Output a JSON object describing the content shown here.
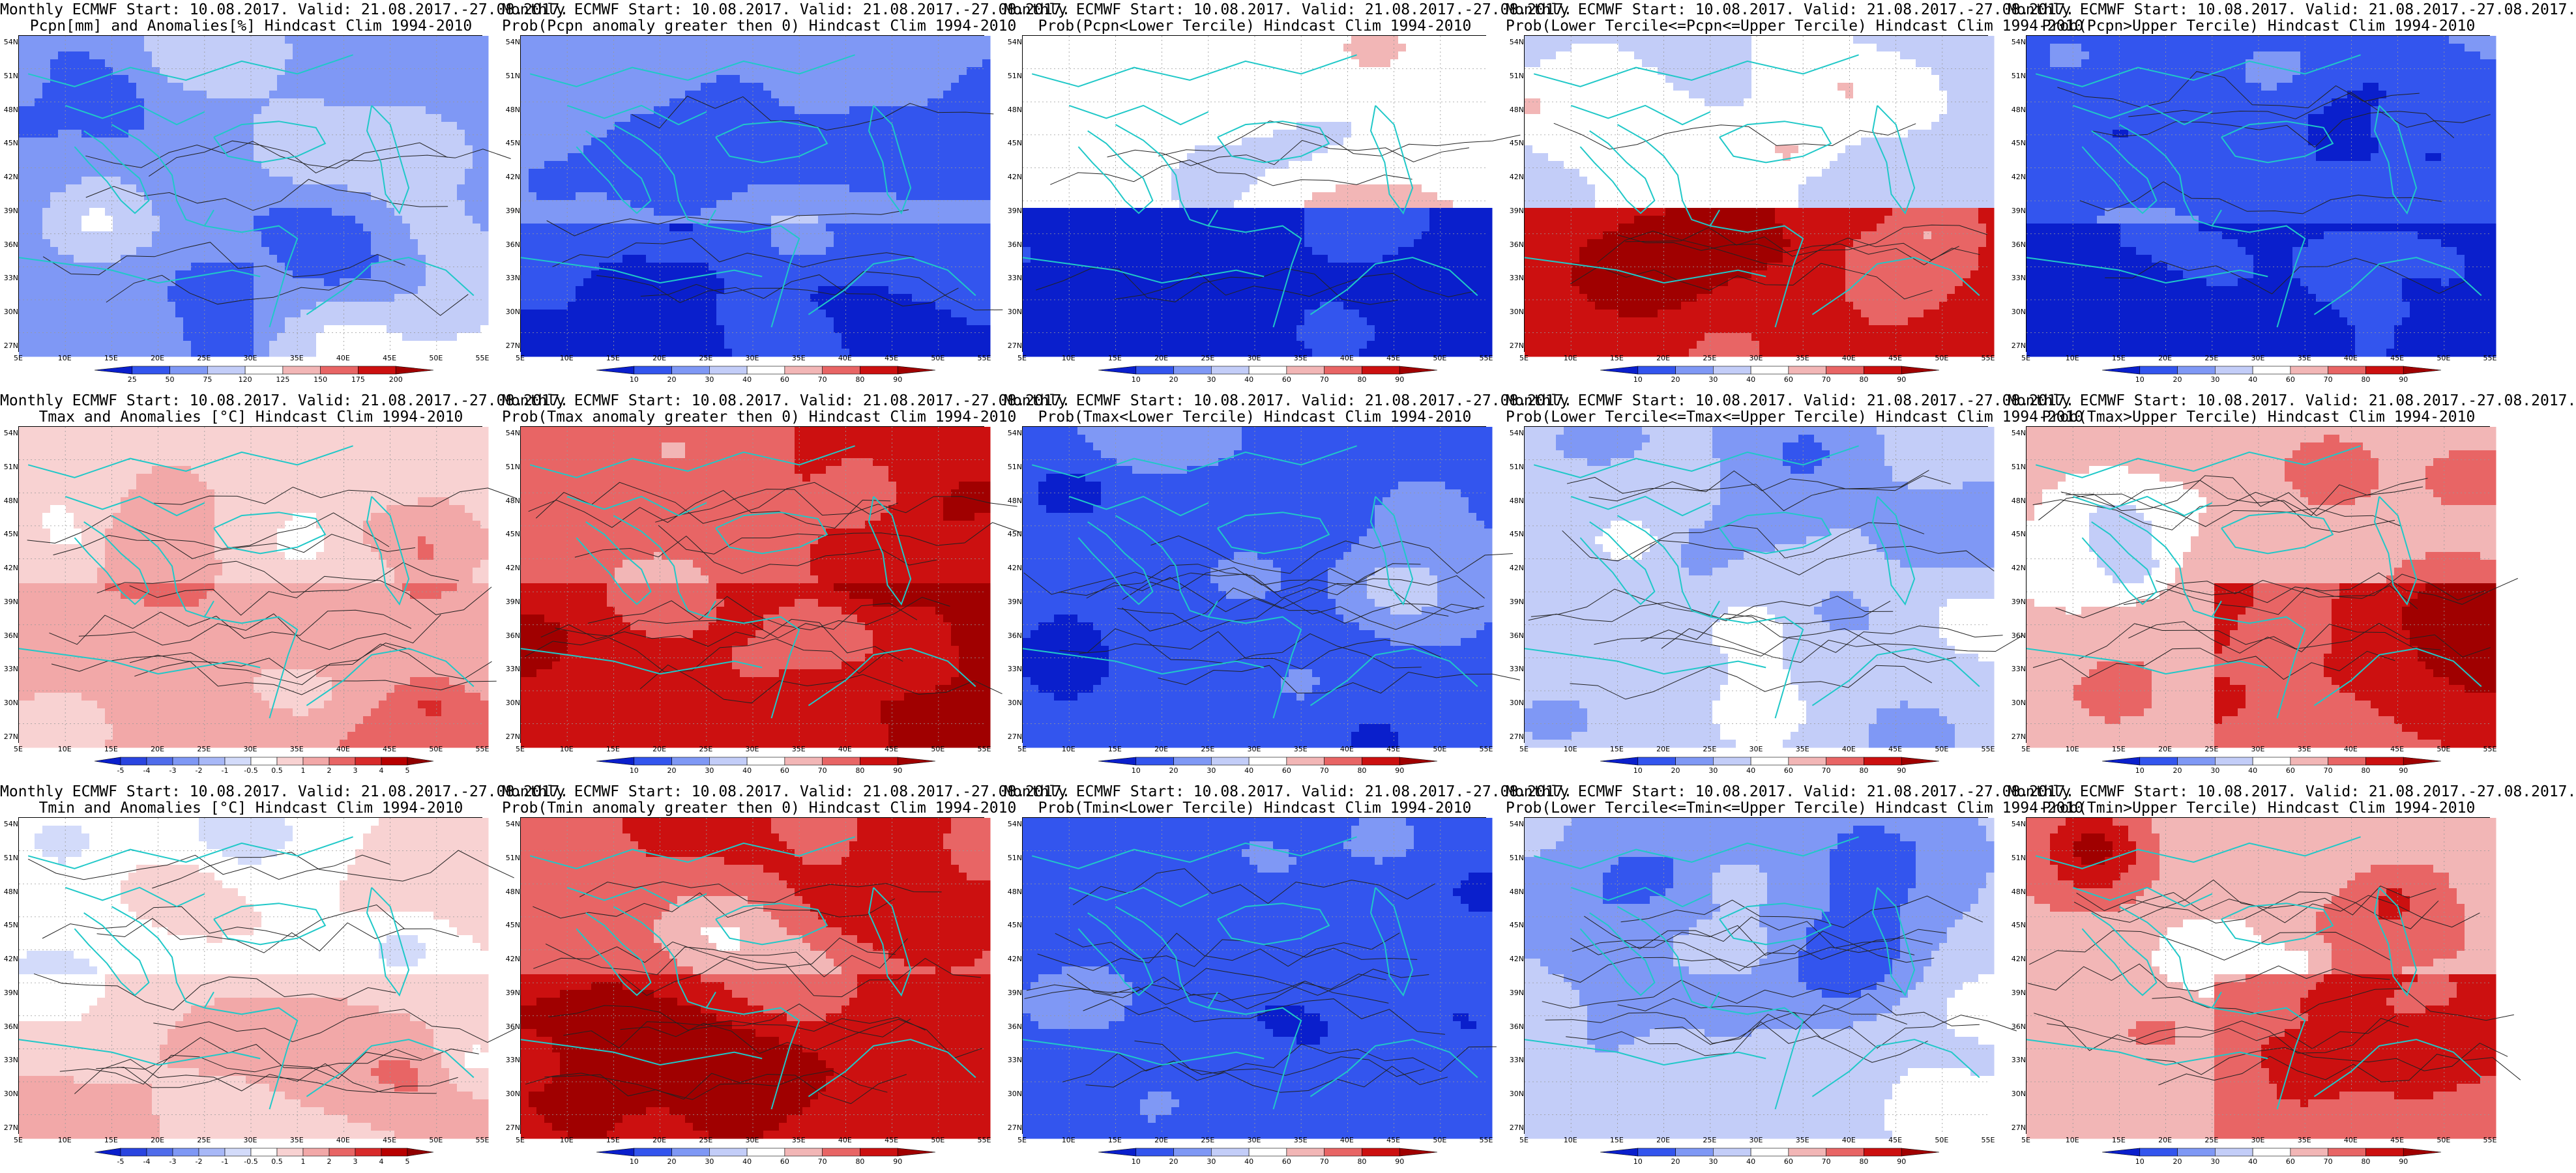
{
  "panels": [
    {
      "row": 0,
      "col": 0,
      "title1": "Monthly ECMWF Start: 10.08.2017. Valid: 21.08.2017.-27.08.2017.",
      "title2": "Pcpn[mm] and Anomalies[%] Hindcast Clim 1994-2010",
      "variable": "pcpn_anomaly",
      "colorbar_ticks": [
        "25",
        "50",
        "75",
        "120",
        "125",
        "150",
        "175",
        "200"
      ],
      "colorbar_colors": [
        "#0a1fcc",
        "#3355ee",
        "#7f98f5",
        "#c3cdf8",
        "#ffffff",
        "#f2b6b6",
        "#e86565",
        "#cc1010",
        "#a00000"
      ]
    },
    {
      "row": 0,
      "col": 1,
      "title1": "Monthly ECMWF Start: 10.08.2017. Valid: 21.08.2017.-27.08.2017.",
      "title2": "Prob(Pcpn anomaly greater then 0) Hindcast Clim 1994-2010",
      "variable": "prob",
      "colorbar_ticks": [
        "10",
        "20",
        "30",
        "40",
        "60",
        "70",
        "80",
        "90"
      ],
      "colorbar_colors": [
        "#0a1fcc",
        "#3355ee",
        "#7f98f5",
        "#c3cdf8",
        "#ffffff",
        "#f2b6b6",
        "#e86565",
        "#cc1010",
        "#a00000"
      ]
    },
    {
      "row": 0,
      "col": 2,
      "title1": "Monthly ECMWF Start: 10.08.2017. Valid: 21.08.2017.-27.08.2017.",
      "title2": "Prob(Pcpn<Lower Tercile) Hindcast Clim 1994-2010",
      "variable": "prob",
      "colorbar_ticks": [
        "10",
        "20",
        "30",
        "40",
        "60",
        "70",
        "80",
        "90"
      ],
      "colorbar_colors": [
        "#0a1fcc",
        "#3355ee",
        "#7f98f5",
        "#c3cdf8",
        "#ffffff",
        "#f2b6b6",
        "#e86565",
        "#cc1010",
        "#a00000"
      ]
    },
    {
      "row": 0,
      "col": 3,
      "title1": "Monthly ECMWF Start: 10.08.2017. Valid: 21.08.2017.-27.08.2017.",
      "title2": "Prob(Lower Tercile<=Pcpn<=Upper Tercile) Hindcast Clim 1994-2010",
      "variable": "prob",
      "colorbar_ticks": [
        "10",
        "20",
        "30",
        "40",
        "60",
        "70",
        "80",
        "90"
      ],
      "colorbar_colors": [
        "#0a1fcc",
        "#3355ee",
        "#7f98f5",
        "#c3cdf8",
        "#ffffff",
        "#f2b6b6",
        "#e86565",
        "#cc1010",
        "#a00000"
      ]
    },
    {
      "row": 0,
      "col": 4,
      "title1": "Monthly ECMWF Start: 10.08.2017. Valid: 21.08.2017.-27.08.2017.",
      "title2": "Prob(Pcpn>Upper Tercile) Hindcast Clim 1994-2010",
      "variable": "prob",
      "colorbar_ticks": [
        "10",
        "20",
        "30",
        "40",
        "60",
        "70",
        "80",
        "90"
      ],
      "colorbar_colors": [
        "#0a1fcc",
        "#3355ee",
        "#7f98f5",
        "#c3cdf8",
        "#ffffff",
        "#f2b6b6",
        "#e86565",
        "#cc1010",
        "#a00000"
      ]
    },
    {
      "row": 1,
      "col": 0,
      "title1": "Monthly ECMWF Start: 10.08.2017. Valid: 21.08.2017.-27.08.2017.",
      "title2": "Tmax and Anomalies [°C] Hindcast Clim 1994-2010",
      "variable": "temp_anomaly",
      "colorbar_ticks": [
        "-5",
        "-4",
        "-3",
        "-2",
        "-1",
        "-0.5",
        "0.5",
        "1",
        "2",
        "3",
        "4",
        "5"
      ],
      "colorbar_colors": [
        "#0a1fcc",
        "#2a45e0",
        "#4f6ceb",
        "#7f98f5",
        "#a8b8f7",
        "#d3dbfa",
        "#ffffff",
        "#f8d2d2",
        "#f2a8a8",
        "#e86565",
        "#d82a2a",
        "#b80000",
        "#900000"
      ]
    },
    {
      "row": 1,
      "col": 1,
      "title1": "Monthly ECMWF Start: 10.08.2017. Valid: 21.08.2017.-27.08.2017.",
      "title2": "Prob(Tmax anomaly greater then 0) Hindcast Clim 1994-2010",
      "variable": "prob",
      "colorbar_ticks": [
        "10",
        "20",
        "30",
        "40",
        "60",
        "70",
        "80",
        "90"
      ],
      "colorbar_colors": [
        "#0a1fcc",
        "#3355ee",
        "#7f98f5",
        "#c3cdf8",
        "#ffffff",
        "#f2b6b6",
        "#e86565",
        "#cc1010",
        "#a00000"
      ]
    },
    {
      "row": 1,
      "col": 2,
      "title1": "Monthly ECMWF Start: 10.08.2017. Valid: 21.08.2017.-27.08.2017.",
      "title2": "Prob(Tmax<Lower Tercile) Hindcast Clim 1994-2010",
      "variable": "prob",
      "colorbar_ticks": [
        "10",
        "20",
        "30",
        "40",
        "60",
        "70",
        "80",
        "90"
      ],
      "colorbar_colors": [
        "#0a1fcc",
        "#3355ee",
        "#7f98f5",
        "#c3cdf8",
        "#ffffff",
        "#f2b6b6",
        "#e86565",
        "#cc1010",
        "#a00000"
      ]
    },
    {
      "row": 1,
      "col": 3,
      "title1": "Monthly ECMWF Start: 10.08.2017. Valid: 21.08.2017.-27.08.2017.",
      "title2": "Prob(Lower Tercile<=Tmax<=Upper Tercile) Hindcast Clim 1994-2010",
      "variable": "prob",
      "colorbar_ticks": [
        "10",
        "20",
        "30",
        "40",
        "60",
        "70",
        "80",
        "90"
      ],
      "colorbar_colors": [
        "#0a1fcc",
        "#3355ee",
        "#7f98f5",
        "#c3cdf8",
        "#ffffff",
        "#f2b6b6",
        "#e86565",
        "#cc1010",
        "#a00000"
      ]
    },
    {
      "row": 1,
      "col": 4,
      "title1": "Monthly ECMWF Start: 10.08.2017. Valid: 21.08.2017.-27.08.2017.",
      "title2": "Prob(Tmax>Upper Tercile) Hindcast Clim 1994-2010",
      "variable": "prob",
      "colorbar_ticks": [
        "10",
        "20",
        "30",
        "40",
        "60",
        "70",
        "80",
        "90"
      ],
      "colorbar_colors": [
        "#0a1fcc",
        "#3355ee",
        "#7f98f5",
        "#c3cdf8",
        "#ffffff",
        "#f2b6b6",
        "#e86565",
        "#cc1010",
        "#a00000"
      ]
    },
    {
      "row": 2,
      "col": 0,
      "title1": "Monthly ECMWF Start: 10.08.2017. Valid: 21.08.2017.-27.08.2017.",
      "title2": "Tmin and Anomalies [°C] Hindcast Clim 1994-2010",
      "variable": "temp_anomaly",
      "colorbar_ticks": [
        "-5",
        "-4",
        "-3",
        "-2",
        "-1",
        "-0.5",
        "0.5",
        "1",
        "2",
        "3",
        "4",
        "5"
      ],
      "colorbar_colors": [
        "#0a1fcc",
        "#2a45e0",
        "#4f6ceb",
        "#7f98f5",
        "#a8b8f7",
        "#d3dbfa",
        "#ffffff",
        "#f8d2d2",
        "#f2a8a8",
        "#e86565",
        "#d82a2a",
        "#b80000",
        "#900000"
      ]
    },
    {
      "row": 2,
      "col": 1,
      "title1": "Monthly ECMWF Start: 10.08.2017. Valid: 21.08.2017.-27.08.2017.",
      "title2": "Prob(Tmin anomaly greater then 0) Hindcast Clim 1994-2010",
      "variable": "prob",
      "colorbar_ticks": [
        "10",
        "20",
        "30",
        "40",
        "60",
        "70",
        "80",
        "90"
      ],
      "colorbar_colors": [
        "#0a1fcc",
        "#3355ee",
        "#7f98f5",
        "#c3cdf8",
        "#ffffff",
        "#f2b6b6",
        "#e86565",
        "#cc1010",
        "#a00000"
      ]
    },
    {
      "row": 2,
      "col": 2,
      "title1": "Monthly ECMWF Start: 10.08.2017. Valid: 21.08.2017.-27.08.2017.",
      "title2": "Prob(Tmin<Lower Tercile) Hindcast Clim 1994-2010",
      "variable": "prob",
      "colorbar_ticks": [
        "10",
        "20",
        "30",
        "40",
        "60",
        "70",
        "80",
        "90"
      ],
      "colorbar_colors": [
        "#0a1fcc",
        "#3355ee",
        "#7f98f5",
        "#c3cdf8",
        "#ffffff",
        "#f2b6b6",
        "#e86565",
        "#cc1010",
        "#a00000"
      ]
    },
    {
      "row": 2,
      "col": 3,
      "title1": "Monthly ECMWF Start: 10.08.2017. Valid: 21.08.2017.-27.08.2017.",
      "title2": "Prob(Lower Tercile<=Tmin<=Upper Tercile) Hindcast Clim 1994-2010",
      "variable": "prob",
      "colorbar_ticks": [
        "10",
        "20",
        "30",
        "40",
        "60",
        "70",
        "80",
        "90"
      ],
      "colorbar_colors": [
        "#0a1fcc",
        "#3355ee",
        "#7f98f5",
        "#c3cdf8",
        "#ffffff",
        "#f2b6b6",
        "#e86565",
        "#cc1010",
        "#a00000"
      ]
    },
    {
      "row": 2,
      "col": 4,
      "title1": "Monthly ECMWF Start: 10.08.2017. Valid: 21.08.2017.-27.08.2017.",
      "title2": "Prob(Tmin>Upper Tercile) Hindcast Clim 1994-2010",
      "variable": "prob",
      "colorbar_ticks": [
        "10",
        "20",
        "30",
        "40",
        "60",
        "70",
        "80",
        "90"
      ],
      "colorbar_colors": [
        "#0a1fcc",
        "#3355ee",
        "#7f98f5",
        "#c3cdf8",
        "#ffffff",
        "#f2b6b6",
        "#e86565",
        "#cc1010",
        "#a00000"
      ]
    }
  ],
  "lat_labels": [
    "54N",
    "51N",
    "48N",
    "45N",
    "42N",
    "39N",
    "36N",
    "33N",
    "30N",
    "27N"
  ],
  "lon_labels": [
    "5E",
    "10E",
    "15E",
    "20E",
    "25E",
    "30E",
    "35E",
    "40E",
    "45E",
    "50E",
    "55E"
  ],
  "colors": {
    "coast": "#20c8c8",
    "contour": "#222222",
    "grid": "#999999"
  }
}
